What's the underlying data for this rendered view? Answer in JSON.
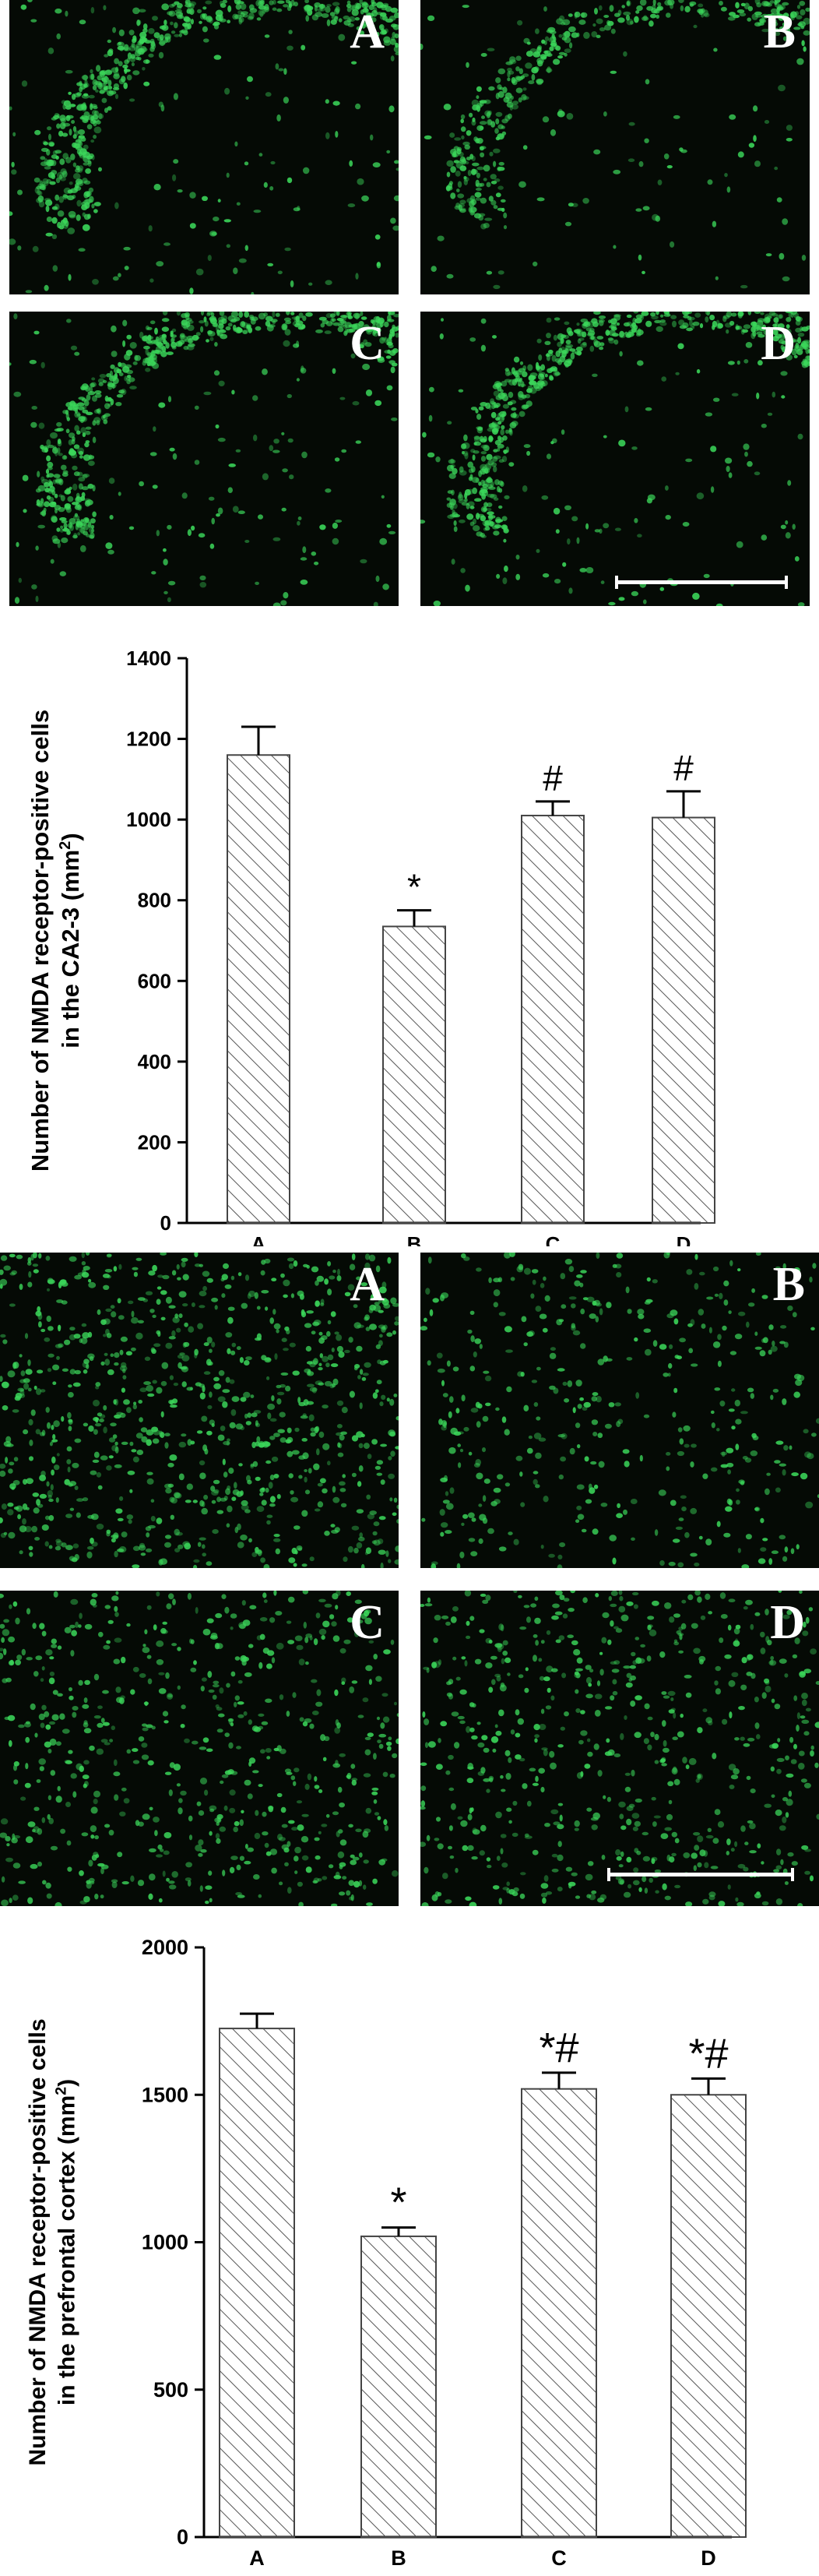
{
  "micrographs_top": [
    {
      "letter": "A",
      "density": "high",
      "arc": true
    },
    {
      "letter": "B",
      "density": "medium",
      "arc": true
    },
    {
      "letter": "C",
      "density": "high",
      "arc": true
    },
    {
      "letter": "D",
      "density": "high",
      "arc": true
    }
  ],
  "micrographs_bottom": [
    {
      "letter": "A",
      "density": "high"
    },
    {
      "letter": "B",
      "density": "low"
    },
    {
      "letter": "C",
      "density": "medium"
    },
    {
      "letter": "D",
      "density": "medium"
    }
  ],
  "colors": {
    "fluorescence": "#3bd65a",
    "background": "#050a05",
    "bar_hatch": "#555555"
  },
  "chart_data": [
    {
      "type": "bar",
      "categories": [
        "A",
        "B",
        "C",
        "D"
      ],
      "values": [
        1160,
        735,
        1010,
        1005
      ],
      "errors": [
        70,
        40,
        35,
        65
      ],
      "annotations": [
        "",
        "*",
        "#",
        "#"
      ],
      "ylabel_line1": "Number of NMDA receptor-positive cells",
      "ylabel_line2": "in the CA2-3 (mm",
      "ylabel_sup": "2",
      "ylabel_end": ")",
      "ylim": [
        0,
        1400
      ],
      "yticks": [
        0,
        200,
        400,
        600,
        800,
        1000,
        1200,
        1400
      ],
      "hatch": "diagonal"
    },
    {
      "type": "bar",
      "categories": [
        "A",
        "B",
        "C",
        "D"
      ],
      "values": [
        1725,
        1020,
        1520,
        1500
      ],
      "errors": [
        50,
        30,
        55,
        55
      ],
      "annotations": [
        "",
        "*",
        "*#",
        "*#"
      ],
      "ylabel_line1": "Number of NMDA receptor-positive cells",
      "ylabel_line2": "in the prefrontal cortex (mm",
      "ylabel_sup": "2",
      "ylabel_end": ")",
      "ylim": [
        0,
        2000
      ],
      "yticks": [
        0,
        500,
        1000,
        1500,
        2000
      ],
      "hatch": "diagonal"
    }
  ]
}
